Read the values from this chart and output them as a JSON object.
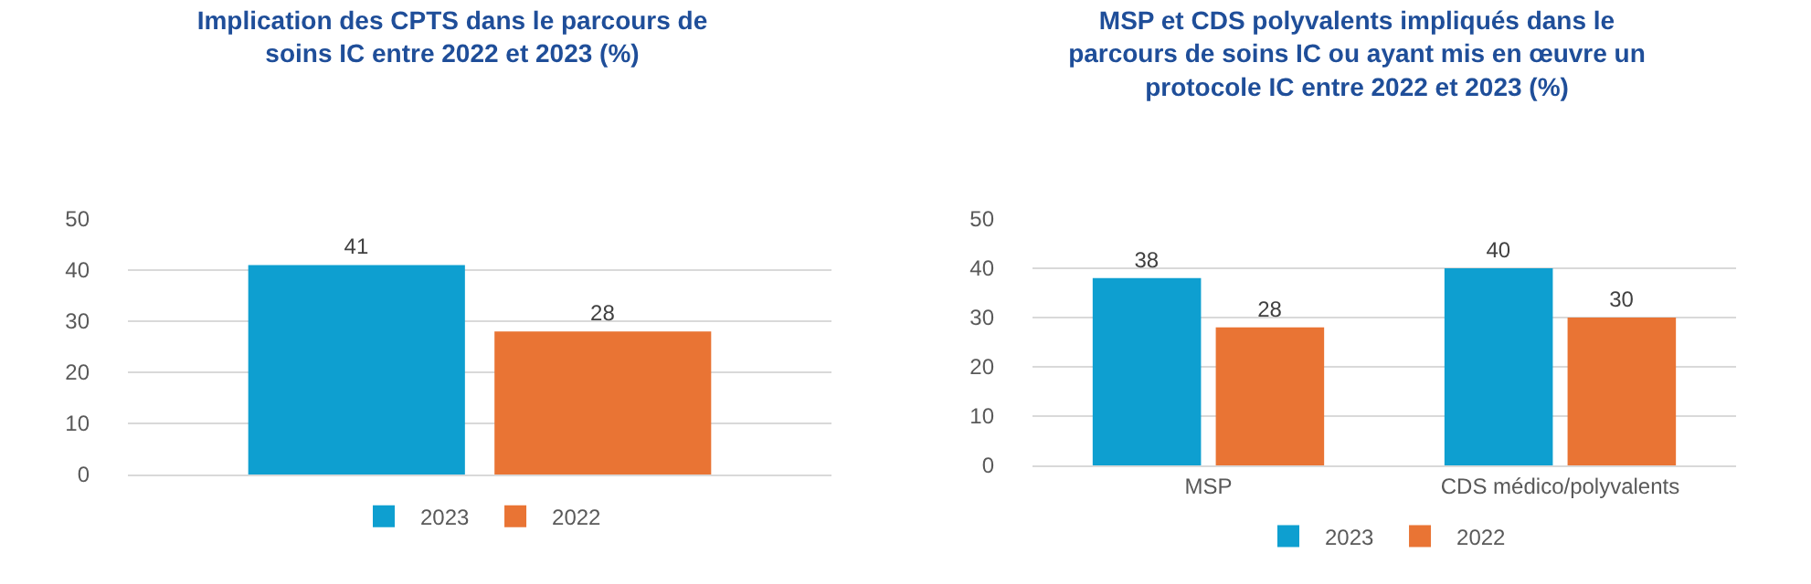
{
  "chart_data": [
    {
      "type": "bar",
      "title": "Implication des CPTS dans le parcours de soins IC entre 2022 et 2023 (%)",
      "categories": [
        null
      ],
      "series": [
        {
          "name": "2023",
          "color": "#0e9fd0",
          "values": [
            41
          ]
        },
        {
          "name": "2022",
          "color": "#e97434",
          "values": [
            28
          ]
        }
      ],
      "ylim": [
        0,
        50
      ],
      "yticks": [
        0,
        10,
        20,
        30,
        40,
        50
      ],
      "grid": "y",
      "legend": "bottom",
      "data_labels": true
    },
    {
      "type": "bar",
      "title": "MSP et CDS polyvalents impliqués dans le parcours de soins IC ou ayant mis en œuvre un protocole IC entre 2022 et 2023 (%)",
      "categories": [
        "MSP",
        "CDS médico/polyvalents"
      ],
      "series": [
        {
          "name": "2023",
          "color": "#0e9fd0",
          "values": [
            38,
            40
          ]
        },
        {
          "name": "2022",
          "color": "#e97434",
          "values": [
            28,
            30
          ]
        }
      ],
      "ylim": [
        0,
        50
      ],
      "yticks": [
        0,
        10,
        20,
        30,
        40,
        50
      ],
      "grid": "y",
      "legend": "bottom",
      "data_labels": true
    }
  ]
}
